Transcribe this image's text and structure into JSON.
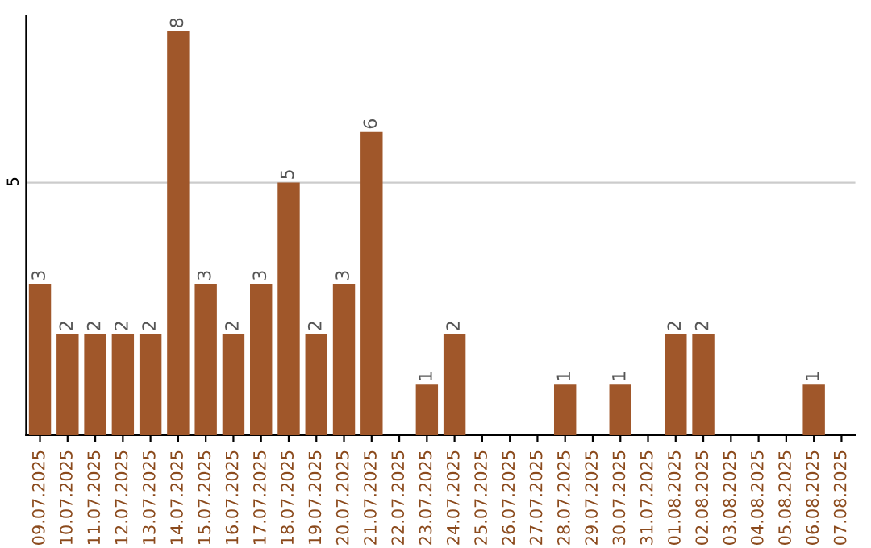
{
  "chart_data": {
    "type": "bar",
    "categories": [
      "09.07.2025",
      "10.07.2025",
      "11.07.2025",
      "12.07.2025",
      "13.07.2025",
      "14.07.2025",
      "15.07.2025",
      "16.07.2025",
      "17.07.2025",
      "18.07.2025",
      "19.07.2025",
      "20.07.2025",
      "21.07.2025",
      "22.07.2025",
      "23.07.2025",
      "24.07.2025",
      "25.07.2025",
      "26.07.2025",
      "27.07.2025",
      "28.07.2025",
      "29.07.2025",
      "30.07.2025",
      "31.07.2025",
      "01.08.2025",
      "02.08.2025",
      "03.08.2025",
      "04.08.2025",
      "05.08.2025",
      "06.08.2025",
      "07.08.2025"
    ],
    "values": [
      3,
      2,
      2,
      2,
      2,
      8,
      3,
      2,
      3,
      5,
      2,
      3,
      6,
      0,
      1,
      2,
      0,
      0,
      0,
      1,
      0,
      1,
      0,
      2,
      2,
      0,
      0,
      0,
      1,
      0
    ],
    "value_labels": [
      "3",
      "2",
      "2",
      "2",
      "2",
      "8",
      "3",
      "2",
      "3",
      "5",
      "2",
      "3",
      "6",
      null,
      "1",
      "2",
      null,
      null,
      null,
      "1",
      null,
      "1",
      null,
      "2",
      "2",
      null,
      null,
      null,
      "1",
      null
    ],
    "color": "#a0572a",
    "ylim": [
      0,
      8.3
    ],
    "yticks": [
      5
    ],
    "grid": "y",
    "legend": false
  }
}
